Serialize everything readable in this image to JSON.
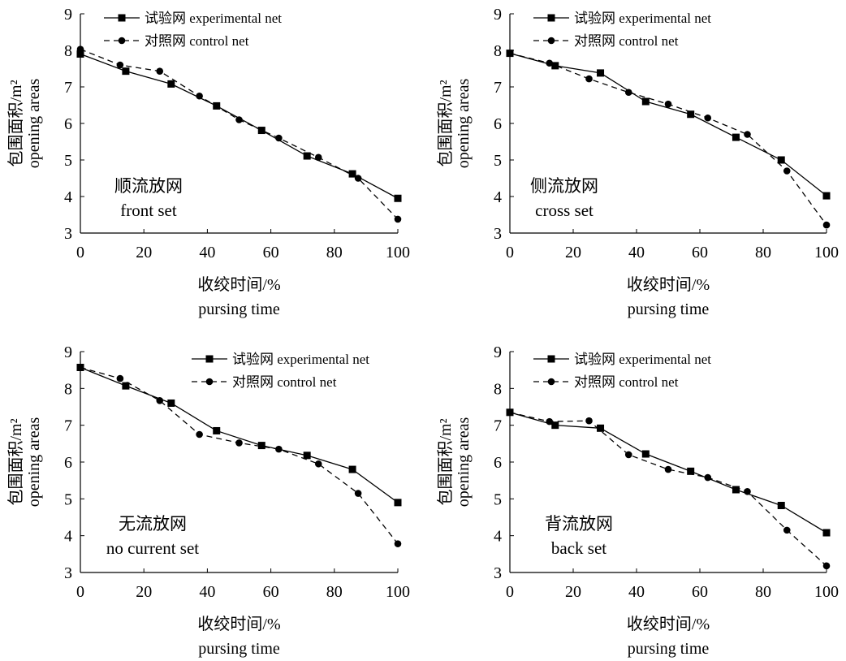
{
  "chart_data": [
    {
      "type": "line",
      "panel_label": [
        "顺流放网",
        "front set"
      ],
      "xlabel": [
        "收绞时间/%",
        "pursing time"
      ],
      "ylabel": [
        "包围面积/m²",
        "opening areas"
      ],
      "xlim": [
        0,
        100
      ],
      "ylim": [
        3,
        9
      ],
      "xticks": [
        "0",
        "20",
        "40",
        "60",
        "80",
        "100"
      ],
      "yticks": [
        "3",
        "4",
        "5",
        "6",
        "7",
        "8",
        "9"
      ],
      "legend_position": "top-left",
      "series": [
        {
          "name": "试验网 experimental net",
          "line": "solid",
          "marker": "square",
          "x": [
            0,
            14.3,
            28.6,
            42.9,
            57.1,
            71.4,
            85.7,
            100
          ],
          "y": [
            7.9,
            7.43,
            7.08,
            6.48,
            5.81,
            5.11,
            4.62,
            3.95
          ]
        },
        {
          "name": "对照网 control net",
          "line": "dashed",
          "marker": "circle",
          "x": [
            0,
            12.5,
            25,
            37.5,
            50,
            62.5,
            75,
            87.5,
            100
          ],
          "y": [
            8.03,
            7.6,
            7.43,
            6.75,
            6.1,
            5.6,
            5.07,
            4.5,
            3.38
          ]
        }
      ]
    },
    {
      "type": "line",
      "panel_label": [
        "侧流放网",
        "cross set"
      ],
      "xlabel": [
        "收绞时间/%",
        "pursing time"
      ],
      "ylabel": [
        "包围面积/m²",
        "opening areas"
      ],
      "xlim": [
        0,
        100
      ],
      "ylim": [
        3,
        9
      ],
      "xticks": [
        "0",
        "20",
        "40",
        "60",
        "80",
        "100"
      ],
      "yticks": [
        "3",
        "4",
        "5",
        "6",
        "7",
        "8",
        "9"
      ],
      "legend_position": "top-left",
      "series": [
        {
          "name": "试验网 experimental net",
          "line": "solid",
          "marker": "square",
          "x": [
            0,
            14.3,
            28.6,
            42.9,
            57.1,
            71.4,
            85.7,
            100
          ],
          "y": [
            7.92,
            7.58,
            7.38,
            6.6,
            6.25,
            5.62,
            5.0,
            4.02
          ]
        },
        {
          "name": "对照网 control net",
          "line": "dashed",
          "marker": "circle",
          "x": [
            0,
            12.5,
            25,
            37.5,
            50,
            62.5,
            75,
            87.5,
            100
          ],
          "y": [
            7.92,
            7.65,
            7.22,
            6.85,
            6.53,
            6.15,
            5.7,
            4.7,
            3.22
          ]
        }
      ]
    },
    {
      "type": "line",
      "panel_label": [
        "无流放网",
        "no current set"
      ],
      "xlabel": [
        "收绞时间/%",
        "pursing time"
      ],
      "ylabel": [
        "包围面积/m²",
        "opening areas"
      ],
      "xlim": [
        0,
        100
      ],
      "ylim": [
        3,
        9
      ],
      "xticks": [
        "0",
        "20",
        "40",
        "60",
        "80",
        "100"
      ],
      "yticks": [
        "3",
        "4",
        "5",
        "6",
        "7",
        "8",
        "9"
      ],
      "legend_position": "top-right",
      "series": [
        {
          "name": "试验网 experimental net",
          "line": "solid",
          "marker": "square",
          "x": [
            0,
            14.3,
            28.6,
            42.9,
            57.1,
            71.4,
            85.7,
            100
          ],
          "y": [
            8.57,
            8.07,
            7.6,
            6.85,
            6.45,
            6.18,
            5.8,
            4.9
          ]
        },
        {
          "name": "对照网 control net",
          "line": "dashed",
          "marker": "circle",
          "x": [
            0,
            12.5,
            25,
            37.5,
            50,
            62.5,
            75,
            87.5,
            100
          ],
          "y": [
            8.57,
            8.27,
            7.67,
            6.75,
            6.52,
            6.35,
            5.95,
            5.15,
            3.78
          ]
        }
      ]
    },
    {
      "type": "line",
      "panel_label": [
        "背流放网",
        "back set"
      ],
      "xlabel": [
        "收绞时间/%",
        "pursing time"
      ],
      "ylabel": [
        "包围面积/m²",
        "opening areas"
      ],
      "xlim": [
        0,
        100
      ],
      "ylim": [
        3,
        9
      ],
      "xticks": [
        "0",
        "20",
        "40",
        "60",
        "80",
        "100"
      ],
      "yticks": [
        "3",
        "4",
        "5",
        "6",
        "7",
        "8",
        "9"
      ],
      "legend_position": "top-left",
      "series": [
        {
          "name": "试验网 experimental net",
          "line": "solid",
          "marker": "square",
          "x": [
            0,
            14.3,
            28.6,
            42.9,
            57.1,
            71.4,
            85.7,
            100
          ],
          "y": [
            7.35,
            7.0,
            6.92,
            6.22,
            5.75,
            5.25,
            4.82,
            4.08
          ]
        },
        {
          "name": "对照网 control net",
          "line": "dashed",
          "marker": "circle",
          "x": [
            0,
            12.5,
            25,
            37.5,
            50,
            62.5,
            75,
            87.5,
            100
          ],
          "y": [
            7.35,
            7.1,
            7.12,
            6.2,
            5.8,
            5.58,
            5.2,
            4.15,
            3.18
          ]
        }
      ]
    }
  ]
}
